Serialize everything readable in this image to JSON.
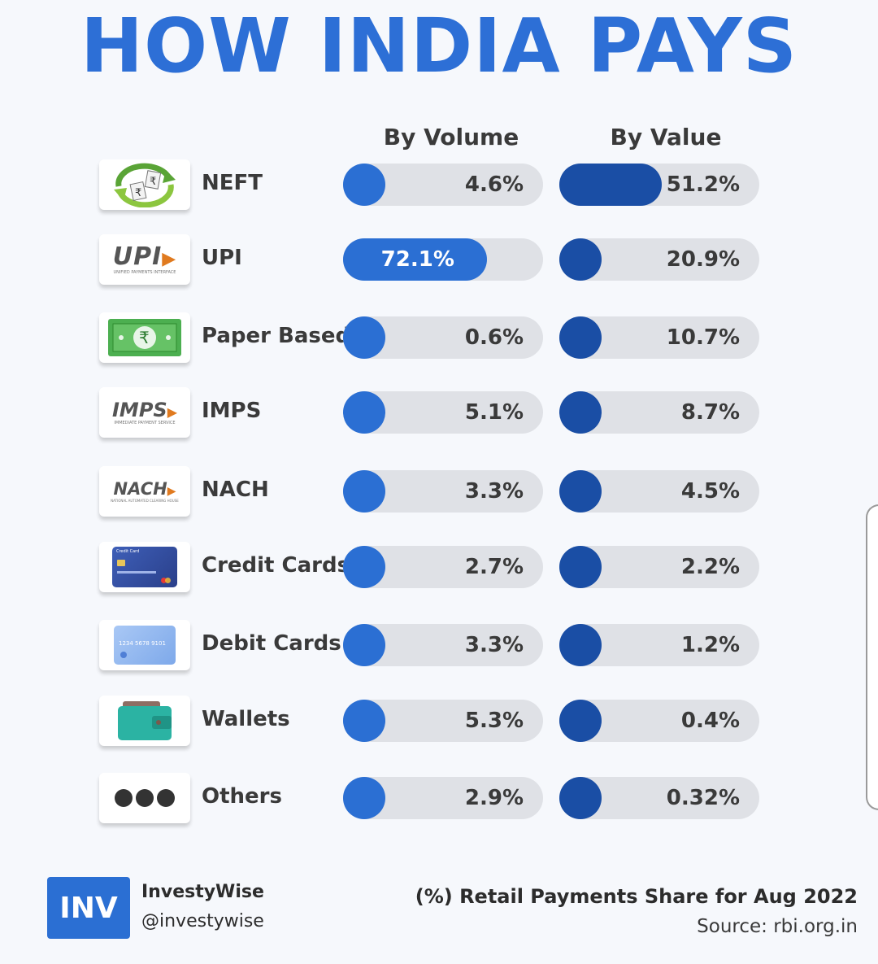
{
  "title": "HOW INDIA PAYS",
  "chart_data": {
    "type": "bar",
    "title": "HOW INDIA PAYS",
    "categories": [
      "NEFT",
      "UPI",
      "Paper Based",
      "IMPS",
      "NACH",
      "Credit Cards",
      "Debit Cards",
      "Wallets",
      "Others"
    ],
    "series": [
      {
        "name": "By Volume",
        "values": [
          4.6,
          72.1,
          0.6,
          5.1,
          3.3,
          2.7,
          3.3,
          5.3,
          2.9
        ],
        "labels": [
          "4.6%",
          "72.1%",
          "0.6%",
          "5.1%",
          "3.3%",
          "2.7%",
          "3.3%",
          "5.3%",
          "2.9%"
        ]
      },
      {
        "name": "By Value",
        "values": [
          51.2,
          20.9,
          10.7,
          8.7,
          4.5,
          2.2,
          1.2,
          0.4,
          0.32
        ],
        "labels": [
          "51.2%",
          "20.9%",
          "10.7%",
          "8.7%",
          "4.5%",
          "2.2%",
          "1.2%",
          "0.4%",
          "0.32%"
        ]
      }
    ],
    "ylim": [
      0,
      100
    ],
    "colors": {
      "volume": "#2b6fd3",
      "value": "#1a4ea5",
      "track": "#dfe1e6",
      "title": "#2d6fd6"
    }
  },
  "logos": {
    "upi": "UPI",
    "upi_sub": "UNIFIED PAYMENTS INTERFACE",
    "imps": "IMPS",
    "imps_sub": "IMMEDIATE PAYMENT SERVICE",
    "nach": "NACH",
    "nach_sub": "NATIONAL AUTOMATED CLEARING HOUSE",
    "rupee": "₹",
    "credit_card": "Credit Card",
    "debit_card_number": "1234 5678 9101"
  },
  "footer": {
    "logo": "INV",
    "brand": "InvestyWise",
    "handle": "@investywise",
    "caption": "(%) Retail Payments Share for Aug 2022",
    "source": "Source: rbi.org.in"
  }
}
